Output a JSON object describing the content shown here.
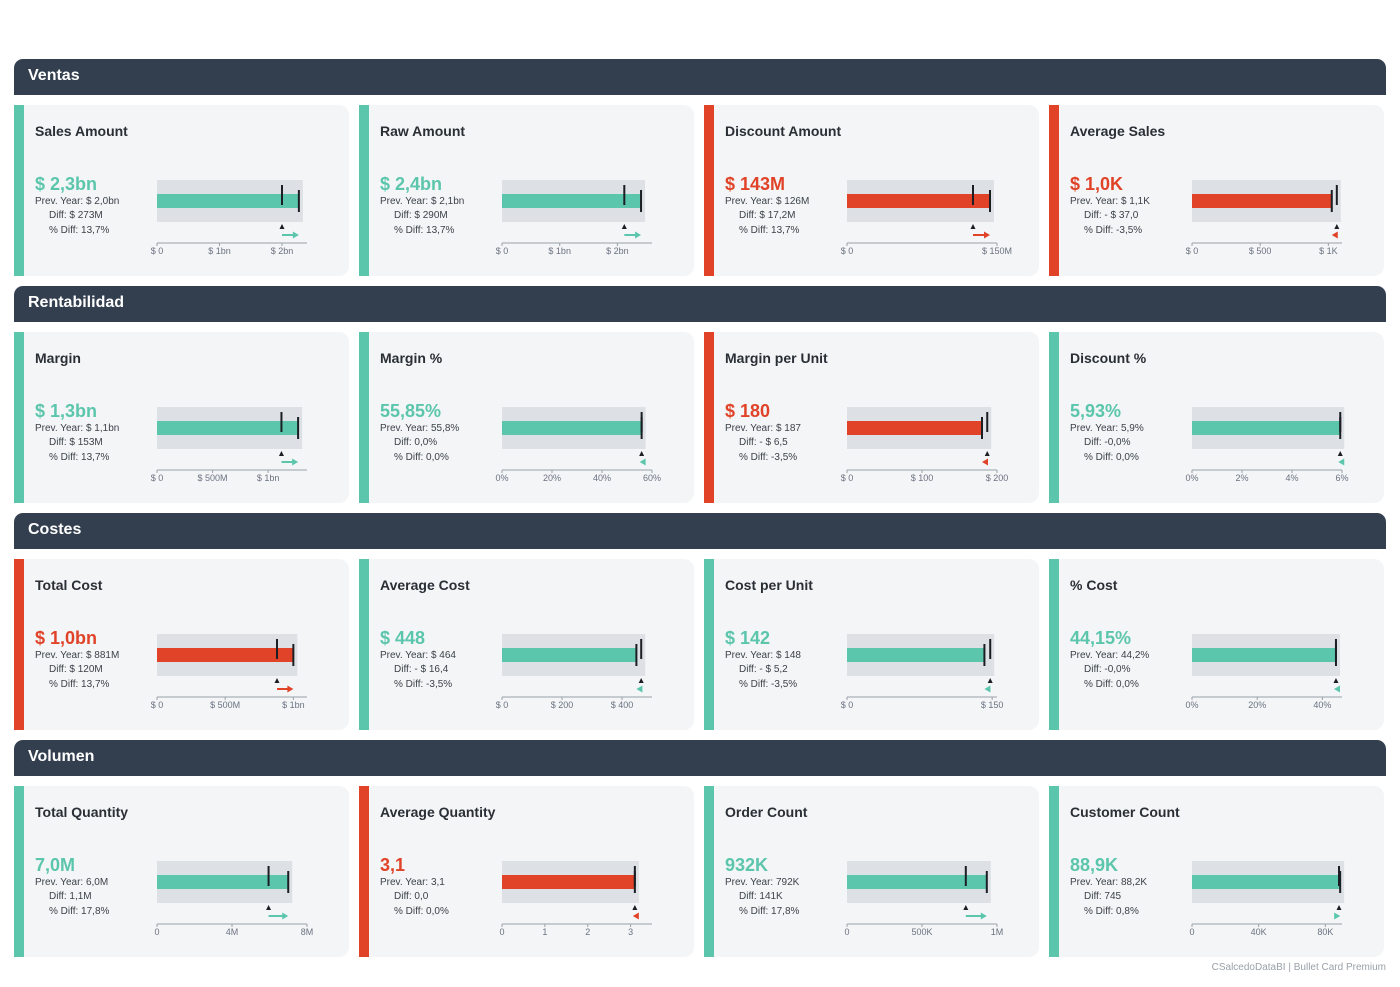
{
  "colors": {
    "good": "#5cc6ad",
    "bad": "#e04328",
    "header": "#333f4f",
    "range": "#dde0e4",
    "target": "#1b1f24"
  },
  "footer": {
    "brand": "CSalcedoDataBI",
    "separator": "|",
    "product": "Bullet Card Premium"
  },
  "sections": [
    {
      "title": "Ventas",
      "cards": [
        {
          "title": "Sales Amount",
          "value": "$ 2,3bn",
          "prev": "Prev. Year: $ 2,0bn",
          "diff": "Diff: $ 273M",
          "pdiff": "% Diff: 13,7%",
          "status": "good",
          "direction": "up",
          "actual": 2.27,
          "previous": 2.0,
          "range": 2.27,
          "axis_max": 2.4,
          "ticks": [
            {
              "v": 0,
              "label": "$ 0"
            },
            {
              "v": 1,
              "label": "$ 1bn"
            },
            {
              "v": 2,
              "label": "$ 2bn"
            }
          ]
        },
        {
          "title": "Raw Amount",
          "value": "$ 2,4bn",
          "prev": "Prev. Year: $ 2,1bn",
          "diff": "Diff: $ 290M",
          "pdiff": "% Diff: 13,7%",
          "status": "good",
          "direction": "up",
          "actual": 2.41,
          "previous": 2.12,
          "range": 2.41,
          "axis_max": 2.6,
          "ticks": [
            {
              "v": 0,
              "label": "$ 0"
            },
            {
              "v": 1,
              "label": "$ 1bn"
            },
            {
              "v": 2,
              "label": "$ 2bn"
            }
          ]
        },
        {
          "title": "Discount Amount",
          "value": "$ 143M",
          "prev": "Prev. Year: $ 126M",
          "diff": "Diff: $ 17,2M",
          "pdiff": "% Diff: 13,7%",
          "status": "bad",
          "direction": "up",
          "actual": 143,
          "previous": 126,
          "range": 143,
          "axis_max": 150,
          "ticks": [
            {
              "v": 0,
              "label": "$ 0"
            },
            {
              "v": 150,
              "label": "$ 150M"
            }
          ]
        },
        {
          "title": "Average Sales",
          "value": "$ 1,0K",
          "prev": "Prev. Year: $ 1,1K",
          "diff": "Diff: - $ 37,0",
          "pdiff": "% Diff: -3,5%",
          "status": "bad",
          "direction": "down",
          "actual": 1025,
          "previous": 1062,
          "range": 1062,
          "axis_max": 1100,
          "ticks": [
            {
              "v": 0,
              "label": "$ 0"
            },
            {
              "v": 500,
              "label": "$ 500"
            },
            {
              "v": 1000,
              "label": "$ 1K"
            }
          ]
        }
      ]
    },
    {
      "title": "Rentabilidad",
      "cards": [
        {
          "title": "Margin",
          "value": "$ 1,3bn",
          "prev": "Prev. Year: $ 1,1bn",
          "diff": "Diff: $ 153M",
          "pdiff": "% Diff: 13,7%",
          "status": "good",
          "direction": "up",
          "actual": 1.27,
          "previous": 1.12,
          "range": 1.27,
          "axis_max": 1.35,
          "ticks": [
            {
              "v": 0,
              "label": "$ 0"
            },
            {
              "v": 0.5,
              "label": "$ 500M"
            },
            {
              "v": 1,
              "label": "$ 1bn"
            }
          ]
        },
        {
          "title": "Margin %",
          "value": "55,85%",
          "prev": "Prev. Year: 55,8%",
          "diff": "Diff: 0,0%",
          "pdiff": "% Diff: 0,0%",
          "status": "good",
          "direction": "flat",
          "actual": 55.85,
          "previous": 55.85,
          "range": 55.85,
          "axis_max": 60,
          "ticks": [
            {
              "v": 0,
              "label": "0%"
            },
            {
              "v": 20,
              "label": "20%"
            },
            {
              "v": 40,
              "label": "40%"
            },
            {
              "v": 60,
              "label": "60%"
            }
          ]
        },
        {
          "title": "Margin per Unit",
          "value": "$ 180",
          "prev": "Prev. Year: $ 187",
          "diff": "Diff: - $ 6,5",
          "pdiff": "% Diff: -3,5%",
          "status": "bad",
          "direction": "down",
          "actual": 180,
          "previous": 187,
          "range": 187,
          "axis_max": 200,
          "ticks": [
            {
              "v": 0,
              "label": "$ 0"
            },
            {
              "v": 100,
              "label": "$ 100"
            },
            {
              "v": 200,
              "label": "$ 200"
            }
          ]
        },
        {
          "title": "Discount %",
          "value": "5,93%",
          "prev": "Prev. Year: 5,9%",
          "diff": "Diff: -0,0%",
          "pdiff": "% Diff: 0,0%",
          "status": "good",
          "direction": "flat",
          "actual": 5.93,
          "previous": 5.93,
          "range": 5.93,
          "axis_max": 6,
          "ticks": [
            {
              "v": 0,
              "label": "0%"
            },
            {
              "v": 2,
              "label": "2%"
            },
            {
              "v": 4,
              "label": "4%"
            },
            {
              "v": 6,
              "label": "6%"
            }
          ]
        }
      ]
    },
    {
      "title": "Costes",
      "cards": [
        {
          "title": "Total Cost",
          "value": "$ 1,0bn",
          "prev": "Prev. Year: $ 881M",
          "diff": "Diff: $ 120M",
          "pdiff": "% Diff: 13,7%",
          "status": "bad",
          "direction": "up",
          "actual": 1.0,
          "previous": 0.88,
          "range": 1.0,
          "axis_max": 1.1,
          "ticks": [
            {
              "v": 0,
              "label": "$ 0"
            },
            {
              "v": 0.5,
              "label": "$ 500M"
            },
            {
              "v": 1,
              "label": "$ 1bn"
            }
          ]
        },
        {
          "title": "Average Cost",
          "value": "$ 448",
          "prev": "Prev. Year: $ 464",
          "diff": "Diff: - $ 16,4",
          "pdiff": "% Diff: -3,5%",
          "status": "good",
          "direction": "down",
          "actual": 448,
          "previous": 464,
          "range": 464,
          "axis_max": 500,
          "ticks": [
            {
              "v": 0,
              "label": "$ 0"
            },
            {
              "v": 200,
              "label": "$ 200"
            },
            {
              "v": 400,
              "label": "$ 400"
            }
          ]
        },
        {
          "title": "Cost per Unit",
          "value": "$ 142",
          "prev": "Prev. Year: $ 148",
          "diff": "Diff: - $ 5,2",
          "pdiff": "% Diff: -3,5%",
          "status": "good",
          "direction": "down",
          "actual": 142,
          "previous": 148,
          "range": 148,
          "axis_max": 155,
          "ticks": [
            {
              "v": 0,
              "label": "$ 0"
            },
            {
              "v": 150,
              "label": "$ 150"
            }
          ]
        },
        {
          "title": "% Cost",
          "value": "44,15%",
          "prev": "Prev. Year: 44,2%",
          "diff": "Diff: -0,0%",
          "pdiff": "% Diff: 0,0%",
          "status": "good",
          "direction": "flat",
          "actual": 44.15,
          "previous": 44.15,
          "range": 44.15,
          "axis_max": 46,
          "ticks": [
            {
              "v": 0,
              "label": "0%"
            },
            {
              "v": 20,
              "label": "20%"
            },
            {
              "v": 40,
              "label": "40%"
            }
          ]
        }
      ]
    },
    {
      "title": "Volumen",
      "cards": [
        {
          "title": "Total Quantity",
          "value": "7,0M",
          "prev": "Prev. Year: 6,0M",
          "diff": "Diff: 1,1M",
          "pdiff": "% Diff: 17,8%",
          "status": "good",
          "direction": "up",
          "actual": 7.0,
          "previous": 5.95,
          "range": 7.0,
          "axis_max": 8,
          "ticks": [
            {
              "v": 0,
              "label": "0"
            },
            {
              "v": 4,
              "label": "4M"
            },
            {
              "v": 8,
              "label": "8M"
            }
          ]
        },
        {
          "title": "Average Quantity",
          "value": "3,1",
          "prev": "Prev. Year: 3,1",
          "diff": "Diff: 0,0",
          "pdiff": "% Diff: 0,0%",
          "status": "bad",
          "direction": "flat",
          "actual": 3.1,
          "previous": 3.1,
          "range": 3.1,
          "axis_max": 3.5,
          "ticks": [
            {
              "v": 0,
              "label": "0"
            },
            {
              "v": 1,
              "label": "1"
            },
            {
              "v": 2,
              "label": "2"
            },
            {
              "v": 3,
              "label": "3"
            }
          ]
        },
        {
          "title": "Order Count",
          "value": "932K",
          "prev": "Prev. Year: 792K",
          "diff": "Diff: 141K",
          "pdiff": "% Diff: 17,8%",
          "status": "good",
          "direction": "up",
          "actual": 932,
          "previous": 792,
          "range": 932,
          "axis_max": 1000,
          "ticks": [
            {
              "v": 0,
              "label": "0"
            },
            {
              "v": 500,
              "label": "500K"
            },
            {
              "v": 1000,
              "label": "1M"
            }
          ]
        },
        {
          "title": "Customer Count",
          "value": "88,9K",
          "prev": "Prev. Year: 88,2K",
          "diff": "Diff: 745",
          "pdiff": "% Diff: 0,8%",
          "status": "good",
          "direction": "up",
          "actual": 88.9,
          "previous": 88.2,
          "range": 88.9,
          "axis_max": 90,
          "ticks": [
            {
              "v": 0,
              "label": "0"
            },
            {
              "v": 40,
              "label": "40K"
            },
            {
              "v": 80,
              "label": "80K"
            }
          ]
        }
      ]
    }
  ]
}
